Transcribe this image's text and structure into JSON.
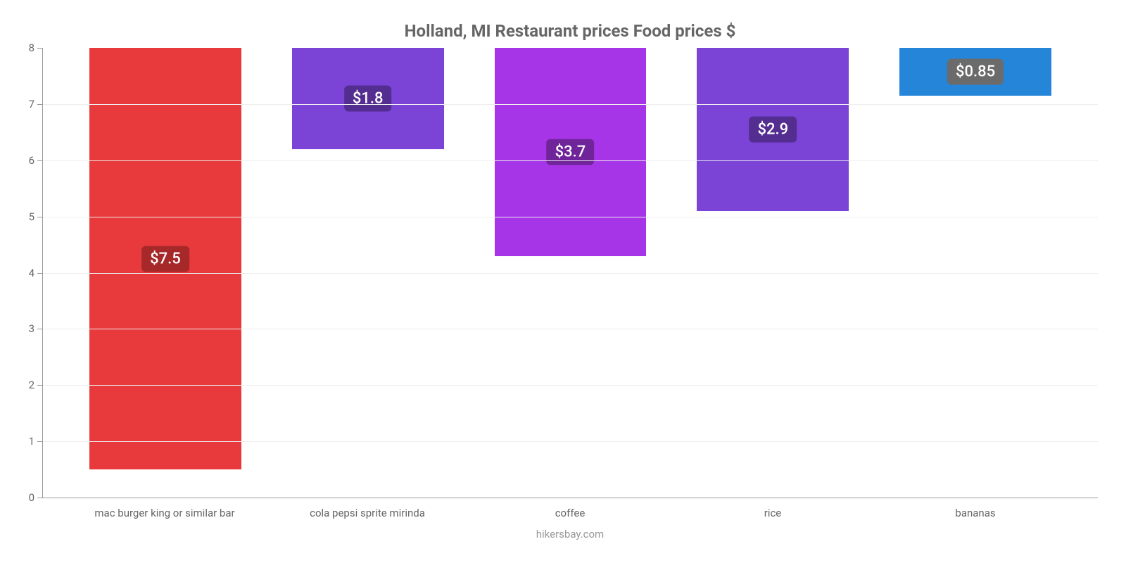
{
  "chart": {
    "type": "bar",
    "title": "Holland, MI Restaurant prices Food prices $",
    "title_fontsize": 24,
    "title_color": "#666666",
    "source": "hikersbay.com",
    "source_color": "#999999",
    "background_color": "#ffffff",
    "grid_color": "#eeeeee",
    "axis_color": "#999999",
    "tick_label_color": "#666666",
    "tick_label_fontsize": 15,
    "ylim": [
      0,
      8
    ],
    "ytick_step": 1,
    "bar_width": 0.75,
    "categories": [
      "mac burger king or similar bar",
      "cola pepsi sprite mirinda",
      "coffee",
      "rice",
      "bananas"
    ],
    "values": [
      7.5,
      1.8,
      3.7,
      2.9,
      0.85
    ],
    "bar_colors": [
      "#e8393c",
      "#7b43d6",
      "#a735e8",
      "#7b43d6",
      "#2585d9"
    ],
    "value_labels": [
      "$7.5",
      "$1.8",
      "$3.7",
      "$2.9",
      "$0.85"
    ],
    "label_bg_colors": [
      "#a62829",
      "#542d91",
      "#6f2499",
      "#542d91",
      "#6b6b6b"
    ],
    "label_text_color": "#ffffff",
    "label_fontsize": 22
  }
}
